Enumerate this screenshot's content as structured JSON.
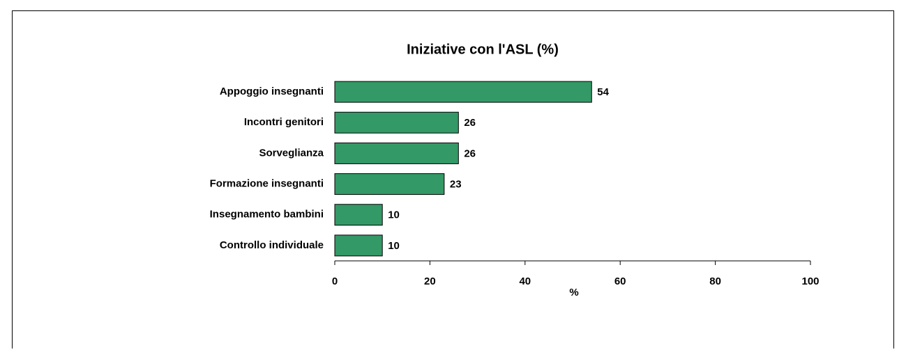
{
  "chart_data": {
    "type": "bar",
    "orientation": "horizontal",
    "title": "Iniziative con l'ASL (%)",
    "categories": [
      "Appoggio insegnanti",
      "Incontri genitori",
      "Sorveglianza",
      "Formazione insegnanti",
      "Insegnamento bambini",
      "Controllo individuale"
    ],
    "values": [
      54,
      26,
      26,
      23,
      10,
      10
    ],
    "color": "#339966",
    "xlabel": "%",
    "xlim": [
      0,
      100
    ],
    "xticks": [
      0,
      20,
      40,
      60,
      80,
      100
    ],
    "grid": false,
    "show_value_labels": true
  }
}
